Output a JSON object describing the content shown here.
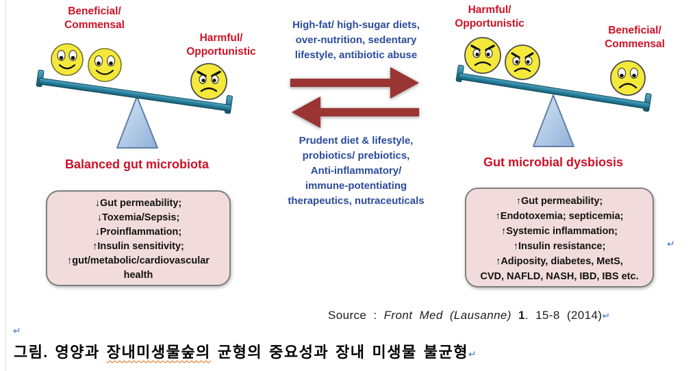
{
  "figure": {
    "left_scale": {
      "beneficial_label": "Beneficial/\nCommensal",
      "harmful_label": "Harmful/\nOpportunistic",
      "caption": "Balanced gut microbiota",
      "box_lines": [
        "↓Gut permeability;",
        "↓Toxemia/Sepsis;",
        "↓Proinflammation;",
        "↑Insulin sensitivity;",
        "↑gut/metabolic/cardiovascular",
        "health"
      ]
    },
    "center": {
      "imbalance_drivers": "High-fat/ high-sugar diets,\nover-nutrition, sedentary\nlifestyle, antibiotic abuse",
      "restoration_measures": "Prudent diet & lifestyle,\nprobiotics/ prebiotics,\nAnti-inflammatory/\nimmune-potentiating\ntherapeutics, nutraceuticals"
    },
    "right_scale": {
      "harmful_label": "Harmful/\nOpportunistic",
      "beneficial_label": "Beneficial/\nCommensal",
      "caption": "Gut microbial dysbiosis",
      "box_lines": [
        "↑Gut permeability;",
        "↑Endotoxemia; septicemia;",
        "↑Systemic inflammation;",
        "↑Insulin resistance;",
        "↑Adiposity, diabetes, MetS,",
        "CVD, NAFLD, NASH, IBD, IBS etc."
      ]
    }
  },
  "source_line": {
    "prefix": "Source : ",
    "journal_italic": "Front Med (Lausanne)",
    "volume_bold": " 1",
    "suffix": ". 15-8 (2014)"
  },
  "caption_line": {
    "prefix": "그림. 영양과 ",
    "misspelled_word": "장내미생물숲의",
    "suffix": " 균형의 중요성과 장내 미생물 불균형"
  },
  "marks": {
    "return_symbol": "↵"
  },
  "colors": {
    "label_red": "#CE1126",
    "text_blue": "#2B4B9B",
    "arrow_dark_red": "#9A3533",
    "beam_teal": "#1F7A93",
    "triangle_blue": "#A9C7E8",
    "box_pink": "#F2DCDB",
    "return_blue": "#4876D6",
    "underline_orange": "#E06000"
  }
}
